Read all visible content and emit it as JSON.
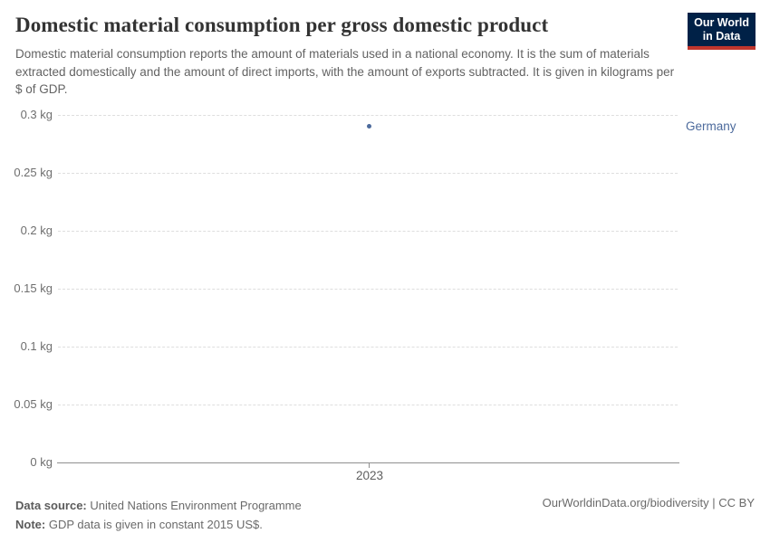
{
  "header": {
    "title": "Domestic material consumption per gross domestic product",
    "subtitle": "Domestic material consumption reports the amount of materials used in a national economy. It is the sum of materials extracted domestically and the amount of direct imports, with the amount of exports subtracted. It is given in kilograms per $ of GDP."
  },
  "logo": {
    "line1": "Our World",
    "line2": "in Data",
    "bg_color": "#002147",
    "accent_color": "#c0362d"
  },
  "chart_data": {
    "type": "scatter",
    "title": "Domestic material consumption per gross domestic product",
    "xlabel": "",
    "ylabel": "",
    "ylim": [
      0,
      0.3
    ],
    "grid": true,
    "legend_position": "right",
    "y_ticks": [
      {
        "value": 0,
        "label": "0 kg"
      },
      {
        "value": 0.05,
        "label": "0.05 kg"
      },
      {
        "value": 0.1,
        "label": "0.1 kg"
      },
      {
        "value": 0.15,
        "label": "0.15 kg"
      },
      {
        "value": 0.2,
        "label": "0.2 kg"
      },
      {
        "value": 0.25,
        "label": "0.25 kg"
      },
      {
        "value": 0.3,
        "label": "0.3 kg"
      }
    ],
    "x_ticks": [
      {
        "value": 2023,
        "label": "2023"
      }
    ],
    "series": [
      {
        "name": "Germany",
        "color": "#4c6a9c",
        "x": [
          2023
        ],
        "y": [
          0.29
        ]
      }
    ]
  },
  "footer": {
    "data_source_label": "Data source:",
    "data_source_value": " United Nations Environment Programme",
    "note_label": "Note:",
    "note_value": " GDP data is given in constant 2015 US$.",
    "attribution": "OurWorldinData.org/biodiversity | CC BY"
  }
}
